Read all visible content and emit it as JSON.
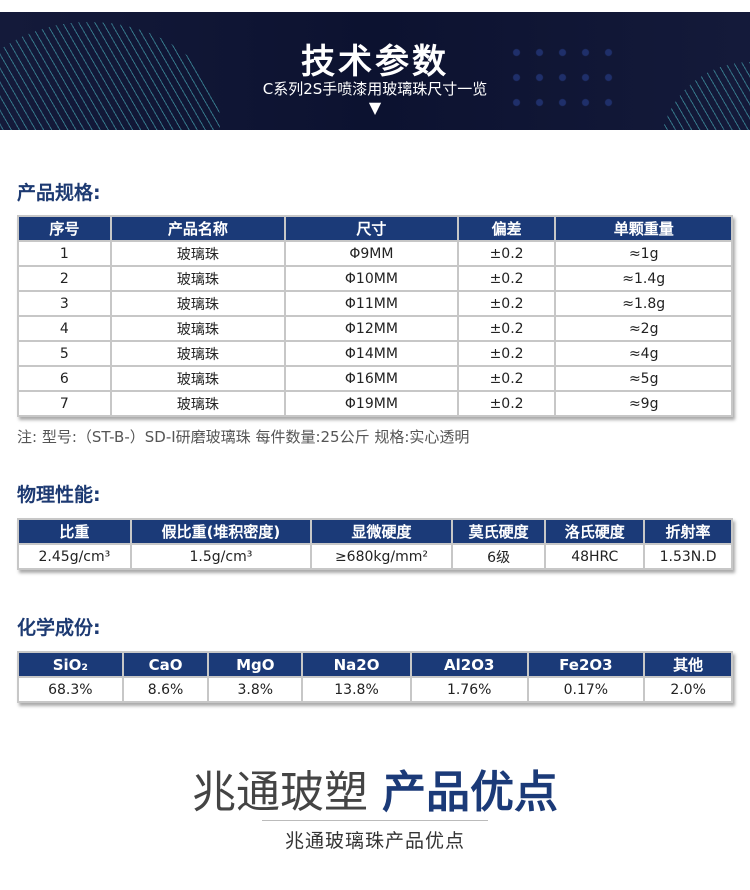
{
  "banner": {
    "title": "技术参数",
    "subtitle": "C系列2S手喷漆用玻璃珠尺寸一览",
    "arrow": "▼"
  },
  "spec": {
    "heading": "产品规格:",
    "headers": [
      "序号",
      "产品名称",
      "尺寸",
      "偏差",
      "单颗重量"
    ],
    "rows": [
      [
        "1",
        "玻璃珠",
        "Φ9MM",
        "±0.2",
        "≈1g"
      ],
      [
        "2",
        "玻璃珠",
        "Φ10MM",
        "±0.2",
        "≈1.4g"
      ],
      [
        "3",
        "玻璃珠",
        "Φ11MM",
        "±0.2",
        "≈1.8g"
      ],
      [
        "4",
        "玻璃珠",
        "Φ12MM",
        "±0.2",
        "≈2g"
      ],
      [
        "5",
        "玻璃珠",
        "Φ14MM",
        "±0.2",
        "≈4g"
      ],
      [
        "6",
        "玻璃珠",
        "Φ16MM",
        "±0.2",
        "≈5g"
      ],
      [
        "7",
        "玻璃珠",
        "Φ19MM",
        "±0.2",
        "≈9g"
      ]
    ],
    "note": "注:  型号:（ST-B-）SD-I研磨玻璃珠   每件数量:25公斤   规格:实心透明"
  },
  "physical": {
    "heading": "物理性能:",
    "headers": [
      "比重",
      "假比重(堆积密度)",
      "显微硬度",
      "莫氏硬度",
      "洛氏硬度",
      "折射率"
    ],
    "values": [
      "2.45g/cm³",
      "1.5g/cm³",
      "≥680kg/mm²",
      "6级",
      "48HRC",
      "1.53N.D"
    ]
  },
  "chemical": {
    "heading": "化学成份:",
    "headers": [
      "SiO₂",
      "CaO",
      "MgO",
      "Na2O",
      "Al2O3",
      "Fe2O3",
      "其他"
    ],
    "values": [
      "68.3%",
      "8.6%",
      "3.8%",
      "13.8%",
      "1.76%",
      "0.17%",
      "2.0%"
    ]
  },
  "bottom": {
    "title_a": "兆通玻塑",
    "title_b": "产品优点",
    "subtitle": "兆通玻璃珠产品优点"
  },
  "colors": {
    "navy": "#1b3a78",
    "banner": "#0c1230"
  }
}
